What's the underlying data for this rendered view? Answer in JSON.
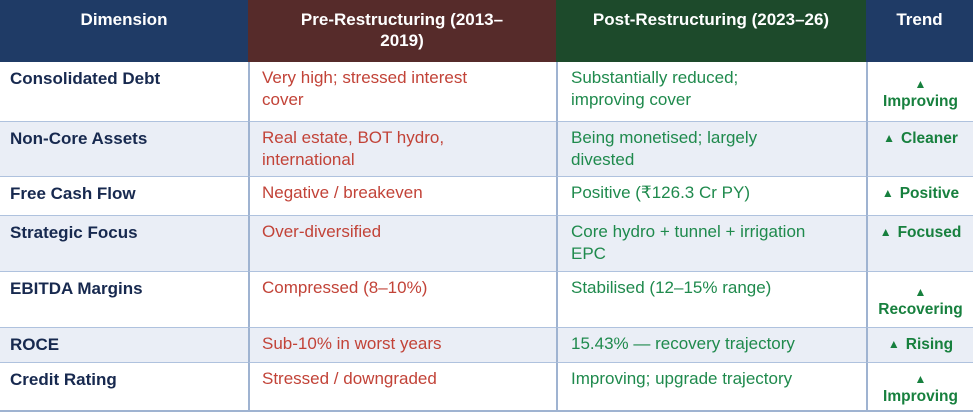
{
  "header": {
    "columns": [
      {
        "label": "Dimension"
      },
      {
        "label": "Pre-Restructuring (2013–\n2019)"
      },
      {
        "label": "Post-Restructuring (2023–26)"
      },
      {
        "label": "Trend"
      }
    ]
  },
  "rows": [
    {
      "dimension": "Consolidated Debt",
      "pre": "Very high; stressed interest\ncover",
      "post": "Substantially reduced;\nimproving cover",
      "trend_icon": "▲",
      "trend_label": "Improving",
      "trend_layout": "stacked"
    },
    {
      "dimension": "Non-Core Assets",
      "pre": "Real estate, BOT hydro,\ninternational",
      "post": "Being monetised; largely\ndivested",
      "trend_icon": "▲",
      "trend_label": "Cleaner",
      "trend_layout": "inline"
    },
    {
      "dimension": "Free Cash Flow",
      "pre": "Negative / breakeven",
      "post": "Positive (₹126.3 Cr PY)",
      "trend_icon": "▲",
      "trend_label": "Positive",
      "trend_layout": "inline"
    },
    {
      "dimension": "Strategic Focus",
      "pre": "Over-diversified",
      "post": "Core hydro + tunnel + irrigation\nEPC",
      "trend_icon": "▲",
      "trend_label": "Focused",
      "trend_layout": "inline"
    },
    {
      "dimension": "EBITDA Margins",
      "pre": "Compressed (8–10%)",
      "post": "Stabilised (12–15% range)",
      "trend_icon": "▲",
      "trend_label": "Recovering",
      "trend_layout": "stacked"
    },
    {
      "dimension": "ROCE",
      "pre": "Sub-10% in worst years",
      "post": "15.43% — recovery trajectory",
      "trend_icon": "▲",
      "trend_label": "Rising",
      "trend_layout": "inline"
    },
    {
      "dimension": "Credit Rating",
      "pre": "Stressed / downgraded",
      "post": "Improving; upgrade trajectory",
      "trend_icon": "▲",
      "trend_label": "Improving",
      "trend_layout": "stacked"
    }
  ],
  "colors": {
    "header_navy": "#1F3B66",
    "header_maroon": "#562B2A",
    "header_green": "#1D4A2B",
    "row_alt_bg": "#EAEEF6",
    "pre_text": "#C24338",
    "post_text": "#1F8A4D",
    "trend_text": "#17803E",
    "dimension_text": "#17294F",
    "border": "#9FB3D1"
  }
}
